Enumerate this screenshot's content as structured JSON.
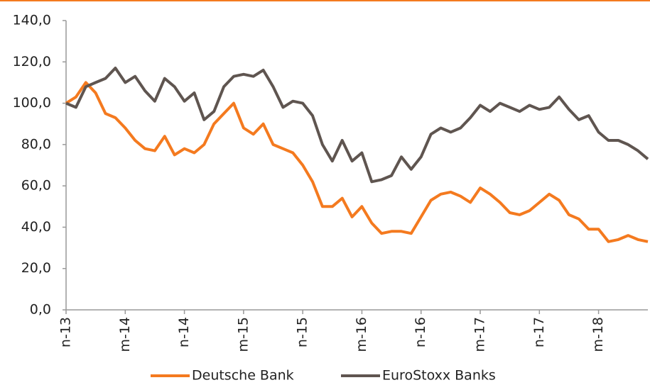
{
  "chart_data": {
    "type": "line",
    "categories": [
      "n-13",
      null,
      null,
      null,
      null,
      null,
      "m-14",
      null,
      null,
      null,
      null,
      null,
      "n-14",
      null,
      null,
      null,
      null,
      null,
      "m-15",
      null,
      null,
      null,
      null,
      null,
      "n-15",
      null,
      null,
      null,
      null,
      null,
      "m-16",
      null,
      null,
      null,
      null,
      null,
      "n-16",
      null,
      null,
      null,
      null,
      null,
      "m-17",
      null,
      null,
      null,
      null,
      null,
      "n-17",
      null,
      null,
      null,
      null,
      null,
      "m-18",
      null,
      null,
      null,
      null,
      null
    ],
    "series": [
      {
        "name": "Deutsche Bank",
        "color": "#f47a1f",
        "values": [
          100,
          103,
          110,
          105,
          95,
          93,
          88,
          82,
          78,
          77,
          84,
          75,
          78,
          76,
          80,
          90,
          95,
          100,
          88,
          85,
          90,
          80,
          78,
          76,
          70,
          62,
          50,
          50,
          54,
          45,
          50,
          42,
          37,
          38,
          38,
          37,
          45,
          53,
          56,
          57,
          55,
          52,
          59,
          56,
          52,
          47,
          46,
          48,
          52,
          56,
          53,
          46,
          44,
          39,
          39,
          33,
          34,
          36,
          34,
          33
        ]
      },
      {
        "name": "EuroStoxx Banks",
        "color": "#5f5550",
        "values": [
          100,
          98,
          108,
          110,
          112,
          117,
          110,
          113,
          106,
          101,
          112,
          108,
          101,
          105,
          92,
          96,
          108,
          113,
          114,
          113,
          116,
          108,
          98,
          101,
          100,
          94,
          80,
          72,
          82,
          72,
          76,
          62,
          63,
          65,
          74,
          68,
          74,
          85,
          88,
          86,
          88,
          93,
          99,
          96,
          100,
          98,
          96,
          99,
          97,
          98,
          103,
          97,
          92,
          94,
          86,
          82,
          82,
          80,
          77,
          73
        ]
      }
    ],
    "ylim": [
      0,
      140
    ],
    "yticks": [
      {
        "value": 0,
        "label": "0,0"
      },
      {
        "value": 20,
        "label": "20,0"
      },
      {
        "value": 40,
        "label": "40,0"
      },
      {
        "value": 60,
        "label": "60,0"
      },
      {
        "value": 80,
        "label": "80,0"
      },
      {
        "value": 100,
        "label": "100,0"
      },
      {
        "value": 120,
        "label": "120,0"
      },
      {
        "value": 140,
        "label": "140,0"
      }
    ],
    "grid": false,
    "legend": "bottom"
  }
}
